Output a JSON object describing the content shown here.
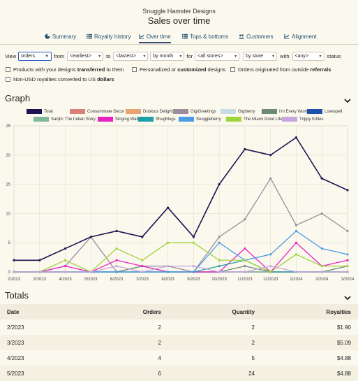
{
  "store_name": "Snuggle Hamster Designs",
  "page_title": "Sales over time",
  "tabs": [
    {
      "label": "Summary",
      "icon": "pie-icon"
    },
    {
      "label": "Royalty history",
      "icon": "list-icon"
    },
    {
      "label": "Over time",
      "icon": "chart-icon"
    },
    {
      "label": "Tops & bottoms",
      "icon": "list-icon"
    },
    {
      "label": "Customers",
      "icon": "people-icon"
    },
    {
      "label": "Alignment",
      "icon": "chart-icon"
    }
  ],
  "active_tab": "Over time",
  "filters": {
    "view_label": "View",
    "view_value": "orders",
    "from_label": "from",
    "from_value": "<earliest>",
    "to_label": "to",
    "to_value": "<lastest>",
    "period_value": "by month",
    "for_label": "for",
    "stores_value": "<all stores>",
    "group_value": "by store",
    "with_label": "with",
    "status_value": "<any>",
    "status_label": "status"
  },
  "checkboxes": [
    {
      "pre": "Products with your designs ",
      "bold": "transferred",
      "post": " to them",
      "checked": false
    },
    {
      "pre": "Personalized or ",
      "bold": "customized",
      "post": " designs",
      "checked": false
    },
    {
      "pre": "Orders originated from outside ",
      "bold": "referrals",
      "post": "",
      "checked": false
    },
    {
      "pre": "Non-USD royalties converted to US ",
      "bold": "dollars",
      "post": "",
      "checked": false
    }
  ],
  "graph_title": "Graph",
  "totals_title": "Totals",
  "chart_data": {
    "type": "line",
    "categories": [
      "2/2023",
      "3/2023",
      "4/2023",
      "5/2023",
      "6/2023",
      "7/2023",
      "8/2023",
      "9/2023",
      "10/2023",
      "11/2023",
      "12/2023",
      "1/2024",
      "2/2024",
      "3/2024"
    ],
    "ylim": [
      0,
      25
    ],
    "yticks": [
      0,
      5,
      10,
      15,
      20,
      25
    ],
    "grid": true,
    "legend_position": "top",
    "series": [
      {
        "name": "Total",
        "color": "#1b1451",
        "values": [
          2,
          2,
          4,
          6,
          7,
          6,
          11,
          6,
          15,
          21,
          20,
          23,
          16,
          14
        ]
      },
      {
        "name": "Consummate Decor",
        "color": "#d9807a",
        "values": [
          0,
          0,
          0,
          0,
          0,
          0,
          0,
          0,
          0,
          0,
          0,
          0,
          0,
          0
        ]
      },
      {
        "name": "Dubious Delights",
        "color": "#e8a373",
        "values": [
          0,
          0,
          0,
          0,
          0,
          0,
          0,
          0,
          0,
          0,
          0,
          0,
          0,
          0
        ]
      },
      {
        "name": "GigiGreetings",
        "color": "#9b8d9c",
        "values": [
          0,
          0,
          1,
          6,
          0,
          1,
          1,
          0,
          6,
          9,
          16,
          8,
          10,
          7
        ]
      },
      {
        "name": "Gigiberry",
        "color": "#c6dde6",
        "values": [
          0,
          0,
          0,
          0,
          0,
          0,
          0,
          0,
          0,
          0,
          0,
          0,
          0,
          0
        ]
      },
      {
        "name": "I'm Every Woman",
        "color": "#6b8b77",
        "values": [
          0,
          0,
          0,
          0,
          0,
          1,
          0,
          0,
          0,
          1,
          0,
          0,
          0,
          1
        ]
      },
      {
        "name": "Lovespell",
        "color": "#1d52a8",
        "values": [
          0,
          0,
          0,
          0,
          0,
          0,
          0,
          0,
          0,
          0,
          0,
          0,
          0,
          0
        ]
      },
      {
        "name": "Sanjhi: The Indian Story",
        "color": "#7fb89a",
        "values": [
          0,
          0,
          0,
          0,
          0,
          0,
          0,
          0,
          0,
          0,
          0,
          0,
          0,
          0
        ]
      },
      {
        "name": "Singing Walls",
        "color": "#e823c3",
        "values": [
          0,
          0,
          1,
          0,
          2,
          1,
          0,
          0,
          0,
          4,
          0,
          5,
          1,
          2
        ]
      },
      {
        "name": "ShugMugs",
        "color": "#1ea0a8",
        "values": [
          0,
          0,
          0,
          0,
          0,
          0,
          0,
          0,
          1,
          2,
          0,
          0,
          0,
          0
        ]
      },
      {
        "name": "Snuggleberry",
        "color": "#4b9be8",
        "values": [
          0,
          0,
          0,
          0,
          0,
          0,
          0,
          0,
          5,
          2,
          3,
          7,
          4,
          3
        ]
      },
      {
        "name": "The Miami Good Life",
        "color": "#9ed43c",
        "values": [
          0,
          0,
          2,
          0,
          4,
          2,
          5,
          5,
          2,
          2,
          0,
          3,
          1,
          1
        ]
      },
      {
        "name": "Trippy Kitties",
        "color": "#c7a6e0",
        "values": [
          0,
          0,
          0,
          0,
          1,
          0,
          1,
          1,
          0,
          0,
          1,
          0,
          0,
          0
        ]
      }
    ]
  },
  "table": {
    "headers": [
      "Date",
      "Orders",
      "Quantity",
      "Royalties"
    ],
    "rows": [
      [
        "2/2023",
        "2",
        "2",
        "$1.90"
      ],
      [
        "3/2023",
        "2",
        "2",
        "$5.09"
      ],
      [
        "4/2023",
        "4",
        "5",
        "$4.88"
      ],
      [
        "5/2023",
        "6",
        "24",
        "$4.88"
      ]
    ]
  }
}
